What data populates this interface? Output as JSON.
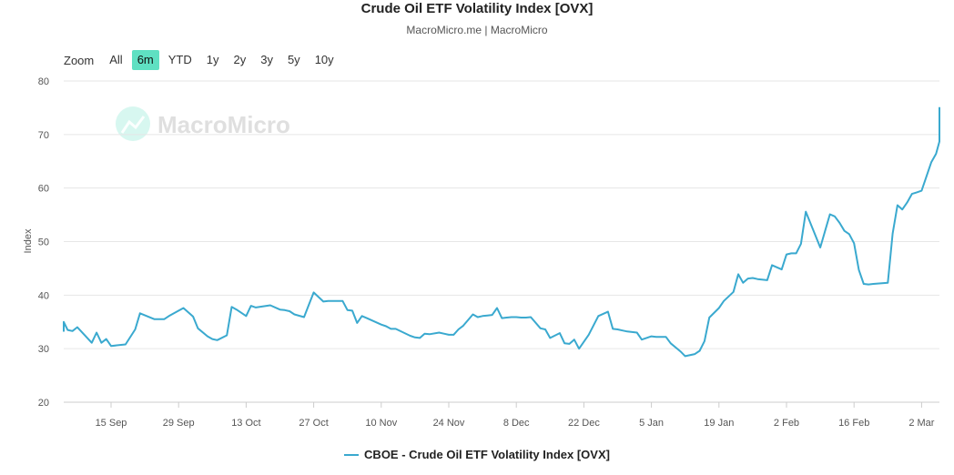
{
  "header": {
    "title": "Crude Oil ETF Volatility Index [OVX]",
    "subtitle": "MacroMicro.me | MacroMicro"
  },
  "range_selector": {
    "label": "Zoom",
    "buttons": [
      "All",
      "6m",
      "YTD",
      "1y",
      "2y",
      "3y",
      "5y",
      "10y"
    ],
    "active": "6m"
  },
  "watermark": "MacroMicro",
  "legend": {
    "label": "CBOE - Crude Oil ETF Volatility Index [OVX]"
  },
  "chart_data": {
    "type": "line",
    "ylabel": "Index",
    "ylim": [
      20,
      80
    ],
    "yticks": [
      20,
      30,
      40,
      50,
      60,
      70,
      80
    ],
    "xticks": [
      "15 Sep",
      "29 Sep",
      "13 Oct",
      "27 Oct",
      "10 Nov",
      "24 Nov",
      "8 Dec",
      "22 Dec",
      "5 Jan",
      "19 Jan",
      "2 Feb",
      "16 Feb",
      "2 Mar"
    ],
    "grid": true,
    "legend_position": "bottom",
    "color": "#3aa9cf",
    "series": [
      {
        "name": "CBOE - Crude Oil ETF Volatility Index [OVX]",
        "x": [
          -14,
          -13,
          -11,
          -10,
          -9,
          -8,
          -7,
          -4,
          -3,
          -2,
          -1,
          0,
          3,
          5,
          6,
          9,
          11,
          12,
          15,
          17,
          18,
          20,
          21,
          22,
          24,
          25,
          26,
          28,
          29,
          30,
          33,
          35,
          36,
          37,
          38,
          40,
          41,
          42,
          44,
          45,
          48,
          49,
          50,
          51,
          52,
          53,
          56,
          57,
          58,
          59,
          62,
          63,
          64,
          65,
          66,
          68,
          69,
          70,
          71,
          72,
          73,
          75,
          76,
          77,
          78,
          79,
          80,
          81,
          82,
          83,
          84,
          85,
          86,
          87,
          89,
          90,
          91,
          93,
          94,
          95,
          96,
          97,
          99,
          101,
          103,
          104,
          105,
          106,
          107,
          108,
          109,
          110,
          112,
          113,
          114,
          115,
          116,
          118,
          119,
          121,
          122,
          123,
          124,
          126,
          127,
          129,
          130,
          131,
          132,
          133,
          134,
          136,
          137,
          139,
          140,
          141,
          142,
          143,
          144,
          147,
          148,
          149,
          150,
          151,
          152,
          153,
          154,
          155
        ],
        "values": [
          35.0,
          33.3,
          34.4,
          35.0,
          33.5,
          33.3,
          34.0,
          31.1,
          33.0,
          31.1,
          31.8,
          30.5,
          30.8,
          33.6,
          36.6,
          35.5,
          35.5,
          36.1,
          37.6,
          36.0,
          33.8,
          32.3,
          31.8,
          31.6,
          32.5,
          37.8,
          37.3,
          36.1,
          38.0,
          37.7,
          38.1,
          37.3,
          37.2,
          37.0,
          36.4,
          35.9,
          38.2,
          40.5,
          38.8,
          38.9,
          38.9,
          37.2,
          37.1,
          34.8,
          36.1,
          35.7,
          34.5,
          34.2,
          33.7,
          33.7,
          32.4,
          32.1,
          32.0,
          32.8,
          32.7,
          33.0,
          32.8,
          32.6,
          32.6,
          33.6,
          34.3,
          36.4,
          35.9,
          36.1,
          36.2,
          36.3,
          37.6,
          35.7,
          35.8,
          35.9,
          35.9,
          35.8,
          35.8,
          35.9,
          33.8,
          33.6,
          32.0,
          32.9,
          31.0,
          30.9,
          31.7,
          30.0,
          32.6,
          36.1,
          36.9,
          33.7,
          33.6,
          33.4,
          33.2,
          33.1,
          33.0,
          31.7,
          32.3,
          32.2,
          32.2,
          32.2,
          31.0,
          29.5,
          28.6,
          29.0,
          29.6,
          31.4,
          35.8,
          37.6,
          38.9,
          40.6,
          43.9,
          42.3,
          43.1,
          43.2,
          43.0,
          42.8,
          45.6,
          44.8,
          47.6,
          47.8,
          47.8,
          49.6,
          55.6,
          48.9,
          52.0,
          55.1,
          54.7,
          53.5,
          52.0,
          51.4,
          49.7,
          44.7
        ],
        "x2": [
          156,
          157,
          158,
          161,
          162,
          163,
          164,
          165,
          166,
          167,
          168,
          170,
          171,
          172,
          173,
          175,
          176
        ],
        "values2": [
          42.1,
          42.0,
          42.1,
          42.3,
          51.5,
          56.8,
          56.0,
          57.3,
          58.9,
          59.2,
          59.5,
          64.8,
          66.4,
          68.7,
          69.0,
          74.1,
          75.1
        ]
      }
    ]
  }
}
